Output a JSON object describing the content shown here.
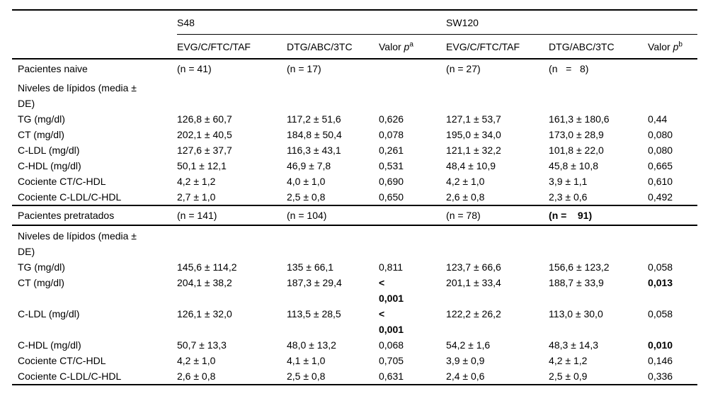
{
  "header": {
    "s48": "S48",
    "sw120": "SW120",
    "drug_a": "EVG/C/FTC/TAF",
    "drug_b": "DTG/ABC/3TC",
    "valor_label": "Valor",
    "p_symbol": "p",
    "sup_a": "a",
    "sup_b": "b"
  },
  "sections": [
    {
      "name": "naive",
      "header_row": {
        "label": "Pacientes naive",
        "cells": [
          {
            "t": "(n = 41)"
          },
          {
            "t": "(n = 17)"
          },
          {
            "t": ""
          },
          {
            "t": "(n = 27)"
          },
          {
            "t": "(n   =   8)"
          },
          {
            "t": ""
          }
        ]
      },
      "rows": [
        {
          "label": "Niveles de lípidos (media ±\nDE)",
          "cells": [
            {
              "t": ""
            },
            {
              "t": ""
            },
            {
              "t": ""
            },
            {
              "t": ""
            },
            {
              "t": ""
            },
            {
              "t": ""
            }
          ]
        },
        {
          "label": "TG (mg/dl)",
          "cells": [
            {
              "t": "126,8 ± 60,7"
            },
            {
              "t": "117,2 ± 51,6"
            },
            {
              "t": "0,626"
            },
            {
              "t": "127,1 ± 53,7"
            },
            {
              "t": "161,3 ± 180,6"
            },
            {
              "t": "0,44"
            }
          ]
        },
        {
          "label": "CT (mg/dl)",
          "cells": [
            {
              "t": "202,1 ± 40,5"
            },
            {
              "t": "184,8 ± 50,4"
            },
            {
              "t": "0,078"
            },
            {
              "t": "195,0 ± 34,0"
            },
            {
              "t": "173,0 ± 28,9"
            },
            {
              "t": "0,080"
            }
          ]
        },
        {
          "label": "C-LDL (mg/dl)",
          "cells": [
            {
              "t": "127,6 ± 37,7"
            },
            {
              "t": "116,3 ± 43,1"
            },
            {
              "t": "0,261"
            },
            {
              "t": "121,1 ± 32,2"
            },
            {
              "t": "101,8 ± 22,0"
            },
            {
              "t": "0,080"
            }
          ]
        },
        {
          "label": "C-HDL (mg/dl)",
          "cells": [
            {
              "t": "50,1 ± 12,1"
            },
            {
              "t": "46,9 ± 7,8"
            },
            {
              "t": "0,531"
            },
            {
              "t": "48,4 ± 10,9"
            },
            {
              "t": "45,8 ± 10,8"
            },
            {
              "t": "0,665"
            }
          ]
        },
        {
          "label": "Cociente CT/C-HDL",
          "cells": [
            {
              "t": "4,2 ± 1,2"
            },
            {
              "t": "4,0 ± 1,0"
            },
            {
              "t": "0,690"
            },
            {
              "t": "4,2 ± 1,0"
            },
            {
              "t": "3,9 ± 1,1"
            },
            {
              "t": "0,610"
            }
          ]
        },
        {
          "label": "Cociente C-LDL/C-HDL",
          "cells": [
            {
              "t": "2,7 ± 1,0"
            },
            {
              "t": "2,5 ± 0,8"
            },
            {
              "t": "0,650"
            },
            {
              "t": "2,6 ± 0,8"
            },
            {
              "t": "2,3 ± 0,6"
            },
            {
              "t": "0,492"
            }
          ]
        }
      ]
    },
    {
      "name": "pretratados",
      "header_row": {
        "label": "Pacientes pretratados",
        "cells": [
          {
            "t": "(n = 141)"
          },
          {
            "t": "(n = 104)"
          },
          {
            "t": ""
          },
          {
            "t": "(n = 78)"
          },
          {
            "t": "(n =    91)",
            "b": true
          },
          {
            "t": ""
          }
        ]
      },
      "rows": [
        {
          "label": "Niveles de lípidos (media ±\nDE)",
          "cells": [
            {
              "t": ""
            },
            {
              "t": ""
            },
            {
              "t": ""
            },
            {
              "t": ""
            },
            {
              "t": ""
            },
            {
              "t": ""
            }
          ]
        },
        {
          "label": "TG (mg/dl)",
          "cells": [
            {
              "t": "145,6 ± 114,2"
            },
            {
              "t": "135 ± 66,1"
            },
            {
              "t": "0,811"
            },
            {
              "t": "123,7 ± 66,6"
            },
            {
              "t": "156,6 ± 123,2"
            },
            {
              "t": "0,058"
            }
          ]
        },
        {
          "label": "CT (mg/dl)",
          "cells": [
            {
              "t": "204,1 ± 38,2"
            },
            {
              "t": "187,3 ± 29,4"
            },
            {
              "t": "<\n0,001",
              "b": true
            },
            {
              "t": "201,1 ± 33,4"
            },
            {
              "t": "188,7 ± 33,9"
            },
            {
              "t": "0,013",
              "b": true
            }
          ]
        },
        {
          "label": "C-LDL (mg/dl)",
          "cells": [
            {
              "t": "126,1 ± 32,0"
            },
            {
              "t": "113,5 ± 28,5"
            },
            {
              "t": "<\n0,001",
              "b": true
            },
            {
              "t": "122,2 ± 26,2"
            },
            {
              "t": "113,0 ± 30,0"
            },
            {
              "t": "0,058"
            }
          ]
        },
        {
          "label": "C-HDL (mg/dl)",
          "cells": [
            {
              "t": "50,7 ± 13,3"
            },
            {
              "t": "48,0 ± 13,2"
            },
            {
              "t": "0,068"
            },
            {
              "t": "54,2 ± 1,6"
            },
            {
              "t": "48,3 ± 14,3"
            },
            {
              "t": "0,010",
              "b": true
            }
          ]
        },
        {
          "label": "Cociente CT/C-HDL",
          "cells": [
            {
              "t": "4,2 ± 1,0"
            },
            {
              "t": "4,1 ± 1,0"
            },
            {
              "t": "0,705"
            },
            {
              "t": "3,9 ± 0,9"
            },
            {
              "t": "4,2 ± 1,2"
            },
            {
              "t": "0,146"
            }
          ]
        },
        {
          "label": "Cociente C-LDL/C-HDL",
          "cells": [
            {
              "t": "2,6 ± 0,8"
            },
            {
              "t": "2,5 ± 0,8"
            },
            {
              "t": "0,631"
            },
            {
              "t": "2,4 ± 0,6"
            },
            {
              "t": "2,5 ± 0,9"
            },
            {
              "t": "0,336"
            }
          ]
        }
      ]
    }
  ]
}
